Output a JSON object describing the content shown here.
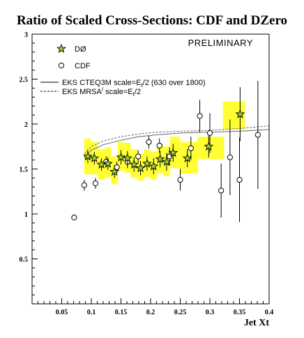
{
  "chart_data": {
    "type": "scatter",
    "title": "Ratio of Scaled Cross-Sections: CDF and DZero",
    "xlabel": "Jet Xt",
    "ylabel": "",
    "xlim": [
      0,
      0.4
    ],
    "ylim": [
      0,
      3
    ],
    "x_ticks": [
      "0.05",
      "0.1",
      "0.15",
      "0.2",
      "0.25",
      "0.3",
      "0.35",
      "0.4"
    ],
    "y_ticks": [
      "0.5",
      "1",
      "1.5",
      "2",
      "2.5",
      "3"
    ],
    "annotation": "PRELIMINARY",
    "legend": [
      {
        "label": "DØ",
        "marker": "star"
      },
      {
        "label": "CDF",
        "marker": "circle"
      },
      {
        "label": "EKS CTEQ3M scale=E",
        "sub": "t",
        "suffix": "/2 (630 over 1800)",
        "style": "solid"
      },
      {
        "label": "EKS MRSA",
        "sup": "/",
        "mid": " scale=E",
        "sub": "t",
        "suffix": "/2",
        "style": "dashed"
      }
    ],
    "colors": {
      "star_fill": "#9acd32",
      "syst_band": "#ffff33",
      "theory": "#666666"
    },
    "d0": {
      "name": "DØ",
      "points": [
        {
          "x": 0.094,
          "y": 1.64,
          "err": 0.07,
          "syst": [
            1.44,
            1.84
          ]
        },
        {
          "x": 0.105,
          "y": 1.62,
          "err": 0.07,
          "syst": [
            1.44,
            1.8
          ]
        },
        {
          "x": 0.117,
          "y": 1.55,
          "err": 0.07,
          "syst": [
            1.38,
            1.72
          ]
        },
        {
          "x": 0.128,
          "y": 1.56,
          "err": 0.07,
          "syst": [
            1.4,
            1.74
          ]
        },
        {
          "x": 0.139,
          "y": 1.47,
          "err": 0.07,
          "syst": [
            1.33,
            1.64
          ]
        },
        {
          "x": 0.15,
          "y": 1.63,
          "err": 0.08,
          "syst": [
            1.48,
            1.8
          ]
        },
        {
          "x": 0.161,
          "y": 1.62,
          "err": 0.08,
          "syst": [
            1.46,
            1.79
          ]
        },
        {
          "x": 0.172,
          "y": 1.55,
          "err": 0.08,
          "syst": [
            1.4,
            1.72
          ]
        },
        {
          "x": 0.183,
          "y": 1.51,
          "err": 0.08,
          "syst": [
            1.37,
            1.67
          ]
        },
        {
          "x": 0.194,
          "y": 1.56,
          "err": 0.08,
          "syst": [
            1.41,
            1.72
          ]
        },
        {
          "x": 0.205,
          "y": 1.53,
          "err": 0.09,
          "syst": [
            1.38,
            1.69
          ]
        },
        {
          "x": 0.216,
          "y": 1.61,
          "err": 0.09,
          "syst": [
            1.45,
            1.78
          ]
        },
        {
          "x": 0.227,
          "y": 1.58,
          "err": 0.1,
          "syst": [
            1.42,
            1.75
          ]
        },
        {
          "x": 0.238,
          "y": 1.68,
          "err": 0.1,
          "syst": [
            1.51,
            1.86
          ]
        },
        {
          "x": 0.262,
          "y": 1.62,
          "err": 0.1,
          "syst": [
            1.45,
            1.8
          ]
        },
        {
          "x": 0.298,
          "y": 1.75,
          "err": 0.12,
          "syst": [
            1.61,
            1.86
          ]
        },
        {
          "x": 0.351,
          "y": 2.11,
          "err": 0.3,
          "syst": [
            1.94,
            2.25
          ]
        }
      ]
    },
    "cdf": {
      "name": "CDF",
      "points": [
        {
          "x": 0.071,
          "y": 0.96,
          "err": 0.0
        },
        {
          "x": 0.088,
          "y": 1.32,
          "err": 0.06
        },
        {
          "x": 0.107,
          "y": 1.34,
          "err": 0.06
        },
        {
          "x": 0.125,
          "y": 1.58,
          "err": 0.06
        },
        {
          "x": 0.143,
          "y": 1.52,
          "err": 0.06
        },
        {
          "x": 0.161,
          "y": 1.58,
          "err": 0.07
        },
        {
          "x": 0.179,
          "y": 1.64,
          "err": 0.07
        },
        {
          "x": 0.197,
          "y": 1.8,
          "err": 0.07
        },
        {
          "x": 0.215,
          "y": 1.76,
          "err": 0.08
        },
        {
          "x": 0.232,
          "y": 1.64,
          "err": 0.1
        },
        {
          "x": 0.25,
          "y": 1.38,
          "err": 0.12
        },
        {
          "x": 0.268,
          "y": 1.73,
          "err": 0.13
        },
        {
          "x": 0.283,
          "y": 2.09,
          "err": 0.18
        },
        {
          "x": 0.3,
          "y": 1.9,
          "err": 0.22
        },
        {
          "x": 0.319,
          "y": 1.26,
          "err": 0.3
        },
        {
          "x": 0.334,
          "y": 1.63,
          "err": 0.42
        },
        {
          "x": 0.35,
          "y": 1.38,
          "err": 0.47
        },
        {
          "x": 0.381,
          "y": 1.88,
          "err": 0.6
        }
      ]
    },
    "theory": [
      {
        "name": "EKS CTEQ3M",
        "style": "solid",
        "x": [
          0.088,
          0.1,
          0.12,
          0.15,
          0.18,
          0.21,
          0.25,
          0.3,
          0.35,
          0.4
        ],
        "y": [
          1.62,
          1.71,
          1.77,
          1.82,
          1.86,
          1.88,
          1.9,
          1.91,
          1.92,
          1.94
        ]
      },
      {
        "name": "EKS MRSA'",
        "style": "dashed",
        "x": [
          0.088,
          0.1,
          0.12,
          0.15,
          0.18,
          0.21,
          0.25,
          0.3,
          0.35,
          0.4
        ],
        "y": [
          1.67,
          1.75,
          1.81,
          1.86,
          1.89,
          1.91,
          1.92,
          1.93,
          1.95,
          1.98
        ]
      }
    ]
  }
}
